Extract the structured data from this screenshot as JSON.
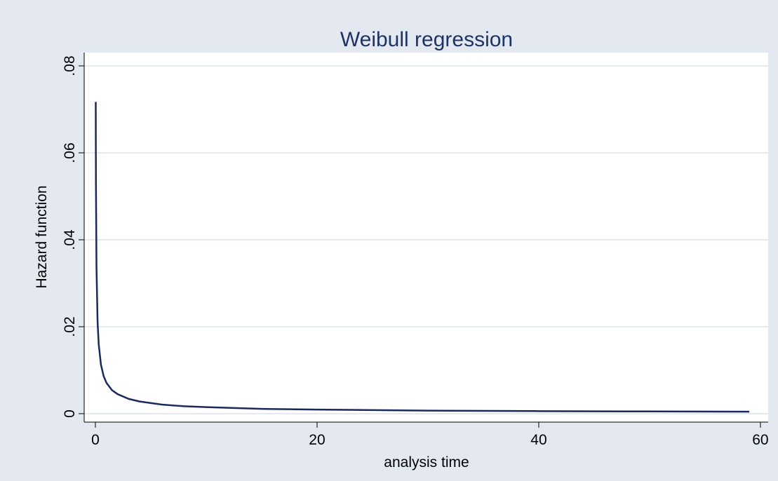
{
  "chart_data": {
    "type": "line",
    "title": "Weibull regression",
    "x_label": "analysis time",
    "y_label": "Hazard function",
    "x": [
      0.033,
      0.05,
      0.1,
      0.2,
      0.3,
      0.5,
      0.75,
      1,
      1.5,
      2,
      3,
      4,
      6,
      8,
      10,
      15,
      20,
      30,
      40,
      50,
      59
    ],
    "values": [
      0.0717,
      0.0535,
      0.0336,
      0.021,
      0.016,
      0.0113,
      0.0086,
      0.0071,
      0.0054,
      0.0045,
      0.0034,
      0.0028,
      0.0021,
      0.0017,
      0.0015,
      0.0011,
      0.00094,
      0.00071,
      0.00059,
      0.00051,
      0.00045
    ],
    "color": "#1a2a5e",
    "xlim": [
      -1.01,
      60.7
    ],
    "xticks": [
      0,
      20,
      40,
      60
    ],
    "ylim": [
      -0.00194,
      0.08306
    ],
    "yticks": [
      0,
      {
        "value": 0.02,
        "label": ".02"
      },
      {
        "value": 0.04,
        "label": ".04"
      },
      {
        "value": 0.06,
        "label": ".06"
      },
      {
        "value": 0.08,
        "label": ".08"
      }
    ],
    "grid": true
  }
}
